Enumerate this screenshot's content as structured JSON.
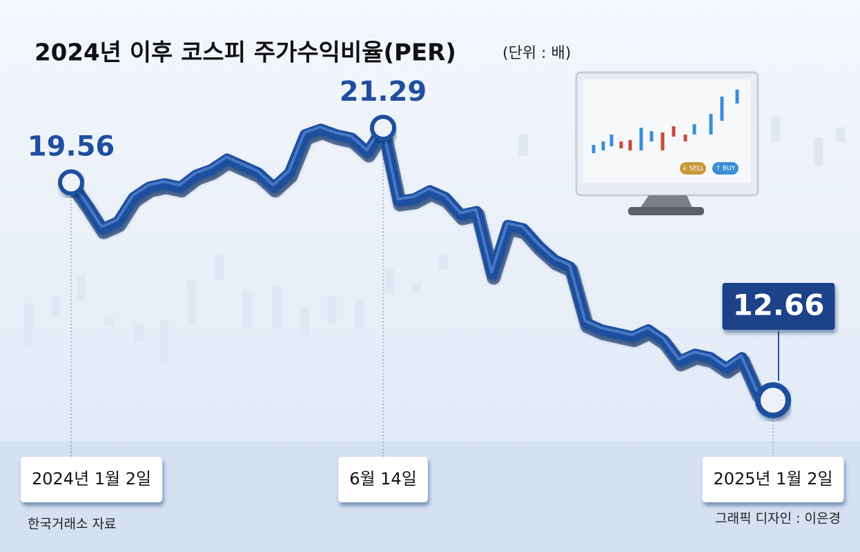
{
  "chart_data": {
    "type": "line",
    "title": "2024년 이후 코스피 주가수익비율(PER)",
    "unit": "(단위 : 배)",
    "source": "한국거래소 자료",
    "credit": "그래픽 디자인 : 이은경",
    "monitor_labels": [
      "↓ SELL",
      "↑ BUY"
    ],
    "categories": [
      "2024년 1월 2일",
      null,
      null,
      null,
      null,
      null,
      null,
      null,
      null,
      null,
      null,
      null,
      null,
      null,
      null,
      null,
      null,
      null,
      null,
      null,
      "6월 14일",
      null,
      null,
      null,
      null,
      null,
      null,
      null,
      null,
      null,
      null,
      null,
      null,
      null,
      null,
      null,
      null,
      null,
      null,
      null,
      null,
      null,
      null,
      null,
      null,
      "2025년 1월 2일"
    ],
    "values": [
      19.56,
      18.86,
      18.09,
      18.31,
      19.08,
      19.41,
      19.52,
      19.41,
      19.79,
      19.97,
      20.3,
      20.08,
      19.86,
      19.41,
      19.86,
      21.07,
      21.25,
      21.07,
      20.96,
      20.52,
      21.29,
      18.97,
      19.04,
      19.3,
      19.08,
      18.53,
      18.64,
      16.65,
      18.2,
      18.09,
      17.54,
      17.1,
      16.88,
      15.11,
      14.89,
      14.78,
      14.67,
      14.89,
      14.56,
      13.9,
      14.12,
      14.01,
      13.67,
      14.01,
      12.9,
      12.66
    ],
    "color": "#1f4f9e",
    "ylim": [
      11,
      23
    ]
  }
}
